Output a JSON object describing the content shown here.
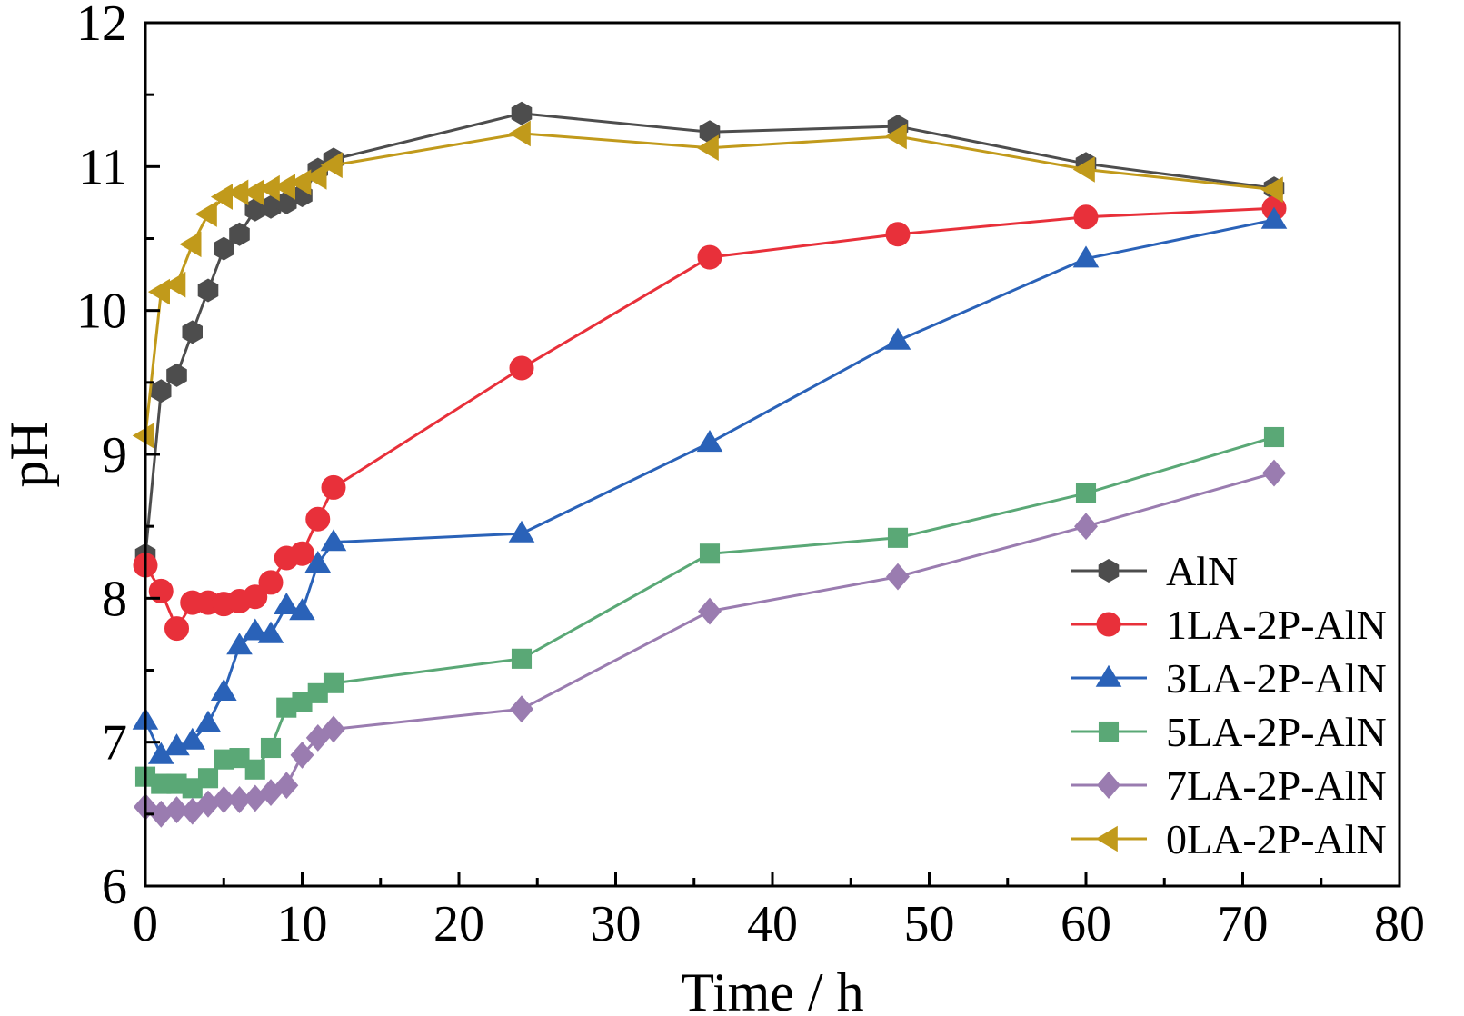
{
  "chart_data": {
    "type": "line",
    "xlabel": "Time / h",
    "ylabel": "pH",
    "xlim": [
      0,
      80
    ],
    "ylim": [
      6,
      12
    ],
    "xticks": [
      "0",
      "10",
      "20",
      "30",
      "40",
      "50",
      "60",
      "70",
      "80"
    ],
    "yticks": [
      "6",
      "7",
      "8",
      "9",
      "10",
      "11",
      "12"
    ],
    "grid": false,
    "legend_position": "bottom-right",
    "series": [
      {
        "name": "AlN",
        "color": "#4d4d4d",
        "marker": "hexagon",
        "x": [
          0,
          1,
          2,
          3,
          4,
          5,
          6,
          7,
          8,
          9,
          10,
          11,
          12,
          24,
          36,
          48,
          60,
          72
        ],
        "y": [
          8.3,
          9.44,
          9.55,
          9.85,
          10.14,
          10.43,
          10.53,
          10.7,
          10.72,
          10.75,
          10.8,
          10.98,
          11.05,
          11.37,
          11.24,
          11.28,
          11.02,
          10.85
        ]
      },
      {
        "name": "1LA-2P-AlN",
        "color": "#e8303a",
        "marker": "circle",
        "x": [
          0,
          1,
          2,
          3,
          4,
          5,
          6,
          7,
          8,
          9,
          10,
          11,
          12,
          24,
          36,
          48,
          60,
          72
        ],
        "y": [
          8.23,
          8.05,
          7.79,
          7.97,
          7.97,
          7.96,
          7.98,
          8.01,
          8.11,
          8.28,
          8.31,
          8.55,
          8.77,
          9.6,
          10.37,
          10.53,
          10.65,
          10.71
        ]
      },
      {
        "name": "3LA-2P-AlN",
        "color": "#2a62b8",
        "marker": "triangle-up",
        "x": [
          0,
          1,
          2,
          3,
          4,
          5,
          6,
          7,
          8,
          9,
          10,
          11,
          12,
          24,
          36,
          48,
          60,
          72
        ],
        "y": [
          7.15,
          6.91,
          6.97,
          7.01,
          7.13,
          7.35,
          7.67,
          7.77,
          7.75,
          7.95,
          7.91,
          8.24,
          8.39,
          8.45,
          9.08,
          9.79,
          10.36,
          10.63
        ]
      },
      {
        "name": "5LA-2P-AlN",
        "color": "#5aa876",
        "marker": "square",
        "x": [
          0,
          1,
          2,
          3,
          4,
          5,
          6,
          7,
          8,
          9,
          10,
          11,
          12,
          24,
          36,
          48,
          60,
          72
        ],
        "y": [
          6.76,
          6.71,
          6.71,
          6.68,
          6.75,
          6.88,
          6.89,
          6.81,
          6.96,
          7.24,
          7.28,
          7.34,
          7.41,
          7.58,
          8.31,
          8.42,
          8.73,
          9.12
        ]
      },
      {
        "name": "7LA-2P-AlN",
        "color": "#9a7cb0",
        "marker": "diamond",
        "x": [
          0,
          1,
          2,
          3,
          4,
          5,
          6,
          7,
          8,
          9,
          10,
          11,
          12,
          24,
          36,
          48,
          60,
          72
        ],
        "y": [
          6.55,
          6.5,
          6.53,
          6.52,
          6.57,
          6.6,
          6.6,
          6.61,
          6.65,
          6.7,
          6.91,
          7.03,
          7.09,
          7.23,
          7.91,
          8.15,
          8.5,
          8.87
        ]
      },
      {
        "name": "0LA-2P-AlN",
        "color": "#c19a1b",
        "marker": "triangle-left",
        "x": [
          0,
          1,
          2,
          3,
          4,
          5,
          6,
          7,
          8,
          9,
          10,
          11,
          12,
          24,
          36,
          48,
          60,
          72
        ],
        "y": [
          9.13,
          10.13,
          10.18,
          10.46,
          10.67,
          10.79,
          10.82,
          10.82,
          10.85,
          10.86,
          10.89,
          10.93,
          11.01,
          11.23,
          11.13,
          11.21,
          10.98,
          10.84
        ]
      }
    ]
  }
}
